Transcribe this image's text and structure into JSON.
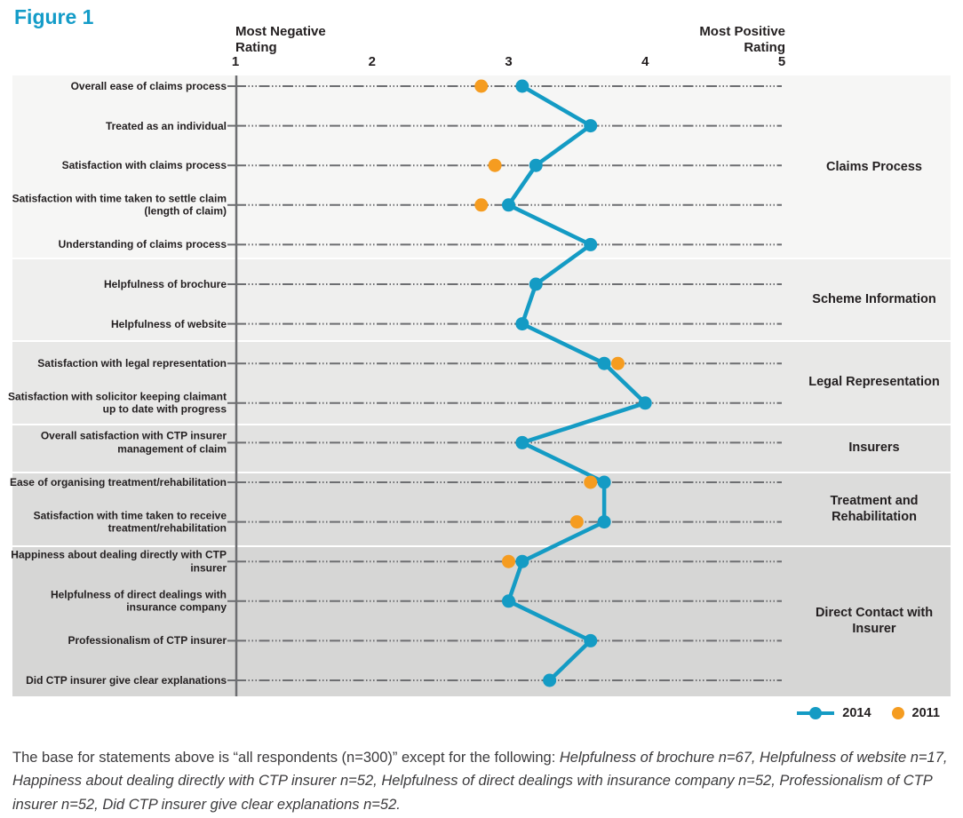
{
  "title": "Figure 1",
  "axis": {
    "min_label": "Most Negative Rating",
    "max_label": "Most Positive Rating",
    "ticks": [
      "1",
      "2",
      "3",
      "4",
      "5"
    ]
  },
  "legend": {
    "items": [
      {
        "label": "2014",
        "color": "#149bc4",
        "style": "line-dot"
      },
      {
        "label": "2011",
        "color": "#f59c20",
        "style": "dot"
      }
    ]
  },
  "chart_data": {
    "type": "scatter",
    "subtype": "horizontal-dot-plot-with-line",
    "title": "Figure 1",
    "xlim": [
      1,
      5
    ],
    "x_ticks": [
      1,
      2,
      3,
      4,
      5
    ],
    "axis_min_label": "Most Negative Rating",
    "axis_max_label": "Most Positive Rating",
    "legend_position": "bottom-right",
    "grid": "dotted-row-leaders",
    "categories": [
      "Overall ease of claims process",
      "Treated as an individual",
      "Satisfaction with claims process",
      "Satisfaction with time taken to settle claim (length of claim)",
      "Understanding of claims process",
      "Helpfulness of brochure",
      "Helpfulness of website",
      "Satisfaction with legal representation",
      "Satisfaction with solicitor keeping claimant up to date with progress",
      "Overall satisfaction with CTP insurer management of claim",
      "Ease of organising treatment/rehabilitation",
      "Satisfaction with time taken to receive treatment/rehabilitation",
      "Happiness about dealing directly with CTP insurer",
      "Helpfulness of direct dealings with insurance company",
      "Professionalism of CTP insurer",
      "Did CTP insurer give clear explanations"
    ],
    "groups": [
      {
        "label": "Claims Process",
        "rows": 5,
        "background": "#f6f6f5"
      },
      {
        "label": "Scheme Information",
        "rows": 2,
        "background": "#efefee"
      },
      {
        "label": "Legal Representation",
        "rows": 2,
        "background": "#e8e8e7"
      },
      {
        "label": "Insurers",
        "rows": 1,
        "background": "#e2e2e1"
      },
      {
        "label": "Treatment and Rehabilitation",
        "rows": 2,
        "background": "#dcdcdb"
      },
      {
        "label": "Direct Contact with Insurer",
        "rows": 4,
        "background": "#d6d6d5"
      }
    ],
    "series": [
      {
        "name": "2014",
        "color": "#149bc4",
        "style": "line+dots",
        "values": [
          3.1,
          3.6,
          3.2,
          3.0,
          3.6,
          3.2,
          3.1,
          3.7,
          4.0,
          3.1,
          3.7,
          3.7,
          3.1,
          3.0,
          3.6,
          3.3
        ]
      },
      {
        "name": "2011",
        "color": "#f59c20",
        "style": "dots",
        "values": [
          2.8,
          null,
          2.9,
          2.8,
          null,
          null,
          null,
          3.8,
          null,
          null,
          3.6,
          3.5,
          3.0,
          null,
          null,
          null
        ]
      }
    ]
  },
  "footnote": {
    "prefix": "The base for statements above is “all respondents (n=300)” except for the following: ",
    "italic": "Helpfulness of brochure n=67, Helpfulness of website n=17, Happiness about dealing directly with CTP insurer n=52, Helpfulness of direct dealings with insurance company n=52, Professionalism of CTP insurer n=52, Did CTP insurer give clear explanations n=52."
  }
}
